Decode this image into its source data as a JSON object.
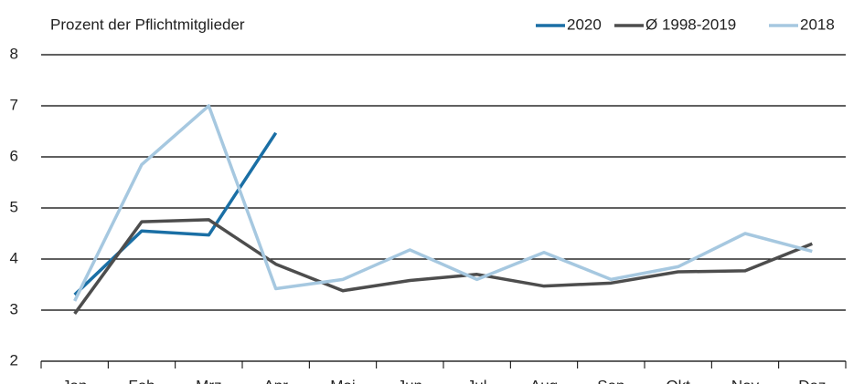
{
  "chart_data": {
    "type": "line",
    "title": "Prozent der Pflichtmitglieder",
    "categories": [
      "Jan",
      "Feb",
      "Mrz",
      "Apr",
      "Mai",
      "Jun",
      "Jul",
      "Aug",
      "Sep",
      "Okt",
      "Nov",
      "Dez"
    ],
    "series": [
      {
        "name": "2020",
        "color": "#1a6fa5",
        "values": [
          3.3,
          4.55,
          4.47,
          6.47,
          null,
          null,
          null,
          null,
          null,
          null,
          null,
          null
        ]
      },
      {
        "name": "Ø 1998-2019",
        "color": "#4d4d4d",
        "values": [
          2.93,
          4.73,
          4.77,
          3.9,
          3.38,
          3.58,
          3.7,
          3.47,
          3.53,
          3.75,
          3.77,
          4.3
        ]
      },
      {
        "name": "2018",
        "color": "#a6c8e0",
        "values": [
          3.18,
          5.85,
          7.0,
          3.42,
          3.6,
          4.18,
          3.6,
          4.13,
          3.6,
          3.85,
          4.5,
          4.15
        ]
      }
    ],
    "ylim": [
      2,
      8
    ],
    "yticks": [
      2,
      3,
      4,
      5,
      6,
      7,
      8
    ],
    "grid": true,
    "legend": "top-right"
  }
}
